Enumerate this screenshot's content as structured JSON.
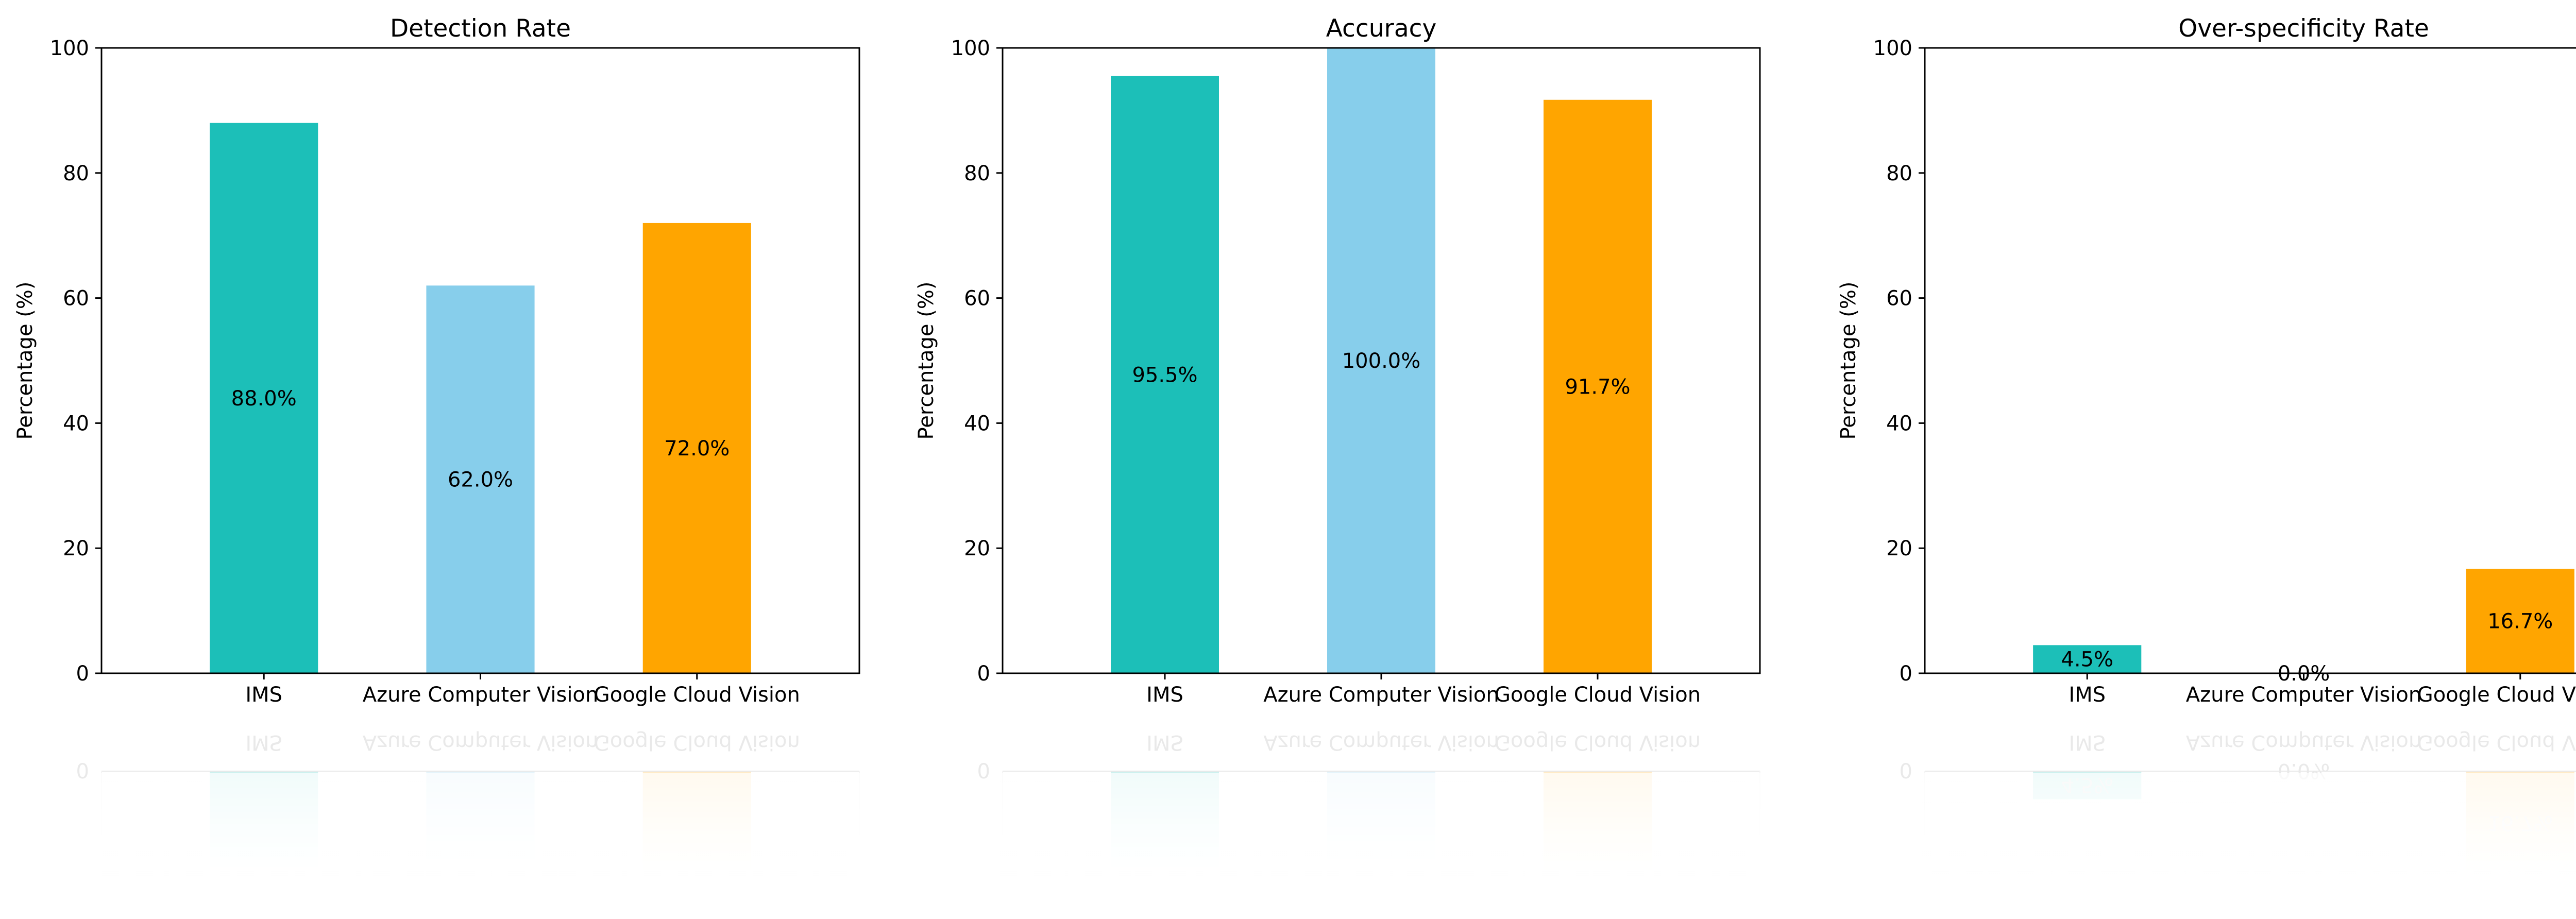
{
  "figure": {
    "background": "#ffffff",
    "show_reflection": true
  },
  "chart_data": [
    {
      "type": "bar",
      "title": "Detection Rate",
      "xlabel": "",
      "ylabel": "Percentage (%)",
      "categories": [
        "IMS",
        "Azure Computer Vision",
        "Google Cloud Vision"
      ],
      "values": [
        88.0,
        62.0,
        72.0
      ],
      "data_labels": [
        "88.0%",
        "62.0%",
        "72.0%"
      ],
      "colors": [
        "#1cbfb8",
        "#87ceeb",
        "#ffa500"
      ],
      "ylim": [
        0,
        100
      ],
      "yticks": [
        0,
        20,
        40,
        60,
        80,
        100
      ],
      "grid": false,
      "legend": "none"
    },
    {
      "type": "bar",
      "title": "Accuracy",
      "xlabel": "",
      "ylabel": "Percentage (%)",
      "categories": [
        "IMS",
        "Azure Computer Vision",
        "Google Cloud Vision"
      ],
      "values": [
        95.5,
        100.0,
        91.7
      ],
      "data_labels": [
        "95.5%",
        "100.0%",
        "91.7%"
      ],
      "colors": [
        "#1cbfb8",
        "#87ceeb",
        "#ffa500"
      ],
      "ylim": [
        0,
        100
      ],
      "yticks": [
        0,
        20,
        40,
        60,
        80,
        100
      ],
      "grid": false,
      "legend": "none"
    },
    {
      "type": "bar",
      "title": "Over-specificity Rate",
      "xlabel": "",
      "ylabel": "Percentage (%)",
      "categories": [
        "IMS",
        "Azure Computer Vision",
        "Google Cloud Vision"
      ],
      "values": [
        4.5,
        0.0,
        16.7
      ],
      "data_labels": [
        "4.5%",
        "0.0%",
        "16.7%"
      ],
      "colors": [
        "#1cbfb8",
        "#87ceeb",
        "#ffa500"
      ],
      "ylim": [
        0,
        100
      ],
      "yticks": [
        0,
        20,
        40,
        60,
        80,
        100
      ],
      "grid": false,
      "legend": "none"
    }
  ]
}
